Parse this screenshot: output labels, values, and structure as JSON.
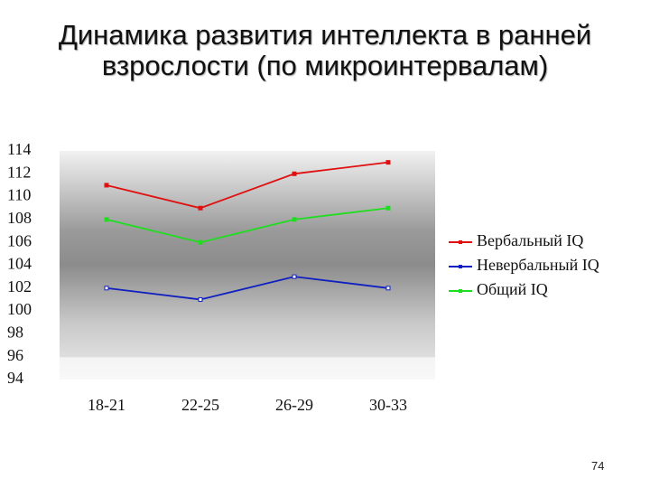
{
  "chart_data": {
    "type": "line",
    "title": "Динамика развития интеллекта в ранней взрослости (по микроинтервалам)",
    "categories": [
      "18-21",
      "22-25",
      "26-29",
      "30-33"
    ],
    "series": [
      {
        "name": "Вербальный IQ",
        "color": "#e01010",
        "values": [
          111,
          109,
          112,
          113
        ]
      },
      {
        "name": "Невербальный IQ",
        "color": "#1020c0",
        "values": [
          102,
          101,
          103,
          102
        ]
      },
      {
        "name": "Общий IQ",
        "color": "#20dd20",
        "values": [
          108,
          106,
          108,
          109
        ]
      }
    ],
    "ylim": [
      94,
      114
    ],
    "yticks": [
      94,
      96,
      98,
      100,
      102,
      104,
      106,
      108,
      110,
      112,
      114
    ],
    "legend": "right"
  },
  "page_number": "74"
}
